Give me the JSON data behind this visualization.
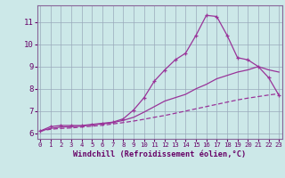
{
  "xlabel": "Windchill (Refroidissement éolien,°C)",
  "bg_color": "#cce8e8",
  "line_color": "#993399",
  "grid_color": "#99aabb",
  "axis_label_color": "#660066",
  "tick_label_color": "#660066",
  "spine_color": "#886699",
  "x_values": [
    0,
    1,
    2,
    3,
    4,
    5,
    6,
    7,
    8,
    9,
    10,
    11,
    12,
    13,
    14,
    15,
    16,
    17,
    18,
    19,
    20,
    21,
    22,
    23
  ],
  "line1_marked": [
    6.1,
    6.3,
    6.35,
    6.35,
    6.35,
    6.4,
    6.45,
    6.5,
    6.65,
    7.05,
    7.6,
    8.35,
    8.85,
    9.3,
    9.6,
    10.4,
    11.3,
    11.25,
    10.4,
    9.4,
    9.3,
    9.0,
    8.5,
    7.7
  ],
  "line2_smooth": [
    6.1,
    6.22,
    6.28,
    6.3,
    6.32,
    6.38,
    6.42,
    6.48,
    6.58,
    6.72,
    6.95,
    7.2,
    7.45,
    7.6,
    7.75,
    8.0,
    8.2,
    8.45,
    8.6,
    8.75,
    8.85,
    9.0,
    8.85,
    8.75
  ],
  "line3_dashed": [
    6.1,
    6.18,
    6.22,
    6.24,
    6.28,
    6.32,
    6.36,
    6.42,
    6.48,
    6.55,
    6.63,
    6.72,
    6.8,
    6.9,
    7.0,
    7.1,
    7.2,
    7.3,
    7.4,
    7.5,
    7.58,
    7.65,
    7.72,
    7.78
  ],
  "ylim": [
    5.75,
    11.75
  ],
  "yticks": [
    6,
    7,
    8,
    9,
    10,
    11
  ],
  "xlim": [
    -0.3,
    23.3
  ]
}
